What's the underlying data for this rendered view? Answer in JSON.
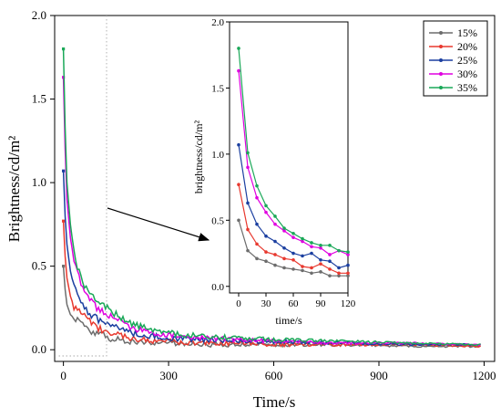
{
  "chart_data": {
    "type": "line",
    "xlabel": "Time/s",
    "ylabel": "Brightness/cd/m²",
    "xlim": [
      -25,
      1230
    ],
    "ylim": [
      -0.07,
      2.0
    ],
    "xticks": [
      0,
      300,
      600,
      900,
      1200
    ],
    "yticks": [
      0.0,
      0.5,
      1.0,
      1.5,
      2.0
    ],
    "xtick_labels": [
      "0",
      "300",
      "600",
      "900",
      "1200"
    ],
    "ytick_labels": [
      "0.0",
      "0.5",
      "1.0",
      "1.5",
      "2.0"
    ],
    "legend_placement": "top-right",
    "series": [
      {
        "name": "15%",
        "color": "#6d6d6d",
        "values": [
          [
            0,
            0.5
          ],
          [
            5,
            0.36
          ],
          [
            10,
            0.27
          ],
          [
            20,
            0.21
          ],
          [
            30,
            0.19
          ],
          [
            40,
            0.18
          ],
          [
            50,
            0.15
          ],
          [
            60,
            0.14
          ],
          [
            80,
            0.11
          ],
          [
            100,
            0.09
          ],
          [
            120,
            0.08
          ],
          [
            150,
            0.06
          ],
          [
            200,
            0.05
          ],
          [
            250,
            0.04
          ],
          [
            300,
            0.04
          ],
          [
            400,
            0.03
          ],
          [
            500,
            0.03
          ],
          [
            600,
            0.03
          ],
          [
            800,
            0.03
          ],
          [
            1000,
            0.02
          ],
          [
            1190,
            0.02
          ]
        ]
      },
      {
        "name": "20%",
        "color": "#e8392f",
        "values": [
          [
            0,
            0.77
          ],
          [
            5,
            0.56
          ],
          [
            10,
            0.43
          ],
          [
            20,
            0.32
          ],
          [
            30,
            0.26
          ],
          [
            40,
            0.24
          ],
          [
            50,
            0.21
          ],
          [
            60,
            0.2
          ],
          [
            80,
            0.16
          ],
          [
            100,
            0.13
          ],
          [
            120,
            0.11
          ],
          [
            150,
            0.09
          ],
          [
            200,
            0.07
          ],
          [
            250,
            0.05
          ],
          [
            300,
            0.05
          ],
          [
            400,
            0.04
          ],
          [
            500,
            0.04
          ],
          [
            600,
            0.03
          ],
          [
            800,
            0.03
          ],
          [
            1000,
            0.03
          ],
          [
            1190,
            0.02
          ]
        ]
      },
      {
        "name": "25%",
        "color": "#1b3fa0",
        "values": [
          [
            0,
            1.07
          ],
          [
            5,
            0.8
          ],
          [
            10,
            0.63
          ],
          [
            20,
            0.47
          ],
          [
            30,
            0.38
          ],
          [
            40,
            0.34
          ],
          [
            50,
            0.29
          ],
          [
            60,
            0.25
          ],
          [
            80,
            0.21
          ],
          [
            100,
            0.18
          ],
          [
            120,
            0.16
          ],
          [
            150,
            0.13
          ],
          [
            200,
            0.1
          ],
          [
            250,
            0.08
          ],
          [
            300,
            0.07
          ],
          [
            400,
            0.06
          ],
          [
            500,
            0.05
          ],
          [
            600,
            0.05
          ],
          [
            800,
            0.04
          ],
          [
            1000,
            0.03
          ],
          [
            1190,
            0.03
          ]
        ]
      },
      {
        "name": "30%",
        "color": "#e000e0",
        "values": [
          [
            0,
            1.63
          ],
          [
            5,
            1.2
          ],
          [
            10,
            0.9
          ],
          [
            20,
            0.67
          ],
          [
            30,
            0.54
          ],
          [
            40,
            0.46
          ],
          [
            50,
            0.4
          ],
          [
            60,
            0.35
          ],
          [
            80,
            0.29
          ],
          [
            100,
            0.24
          ],
          [
            120,
            0.22
          ],
          [
            150,
            0.18
          ],
          [
            200,
            0.13
          ],
          [
            250,
            0.1
          ],
          [
            300,
            0.09
          ],
          [
            400,
            0.07
          ],
          [
            500,
            0.06
          ],
          [
            600,
            0.05
          ],
          [
            800,
            0.04
          ],
          [
            1000,
            0.04
          ],
          [
            1190,
            0.03
          ]
        ]
      },
      {
        "name": "35%",
        "color": "#1aa858",
        "values": [
          [
            0,
            1.8
          ],
          [
            5,
            1.33
          ],
          [
            10,
            1.0
          ],
          [
            20,
            0.75
          ],
          [
            30,
            0.59
          ],
          [
            40,
            0.5
          ],
          [
            50,
            0.43
          ],
          [
            60,
            0.38
          ],
          [
            80,
            0.32
          ],
          [
            100,
            0.28
          ],
          [
            120,
            0.26
          ],
          [
            150,
            0.21
          ],
          [
            200,
            0.15
          ],
          [
            250,
            0.12
          ],
          [
            300,
            0.1
          ],
          [
            400,
            0.08
          ],
          [
            500,
            0.07
          ],
          [
            600,
            0.06
          ],
          [
            800,
            0.05
          ],
          [
            1000,
            0.04
          ],
          [
            1190,
            0.03
          ]
        ]
      }
    ],
    "inset": {
      "xlabel": "time/s",
      "ylabel": "brightness/cd/m²",
      "xlim": [
        -10,
        120
      ],
      "ylim": [
        -0.05,
        2.0
      ],
      "xticks": [
        0,
        30,
        60,
        90,
        120
      ],
      "yticks": [
        0.0,
        0.5,
        1.0,
        1.5,
        2.0
      ],
      "xtick_labels": [
        "0",
        "30",
        "60",
        "90",
        "120"
      ],
      "ytick_labels": [
        "0.0",
        "0.5",
        "1.0",
        "1.5",
        "2.0"
      ],
      "x": [
        0,
        10,
        20,
        30,
        40,
        50,
        60,
        70,
        80,
        90,
        100,
        110,
        120
      ],
      "series": [
        {
          "name": "15%",
          "values": [
            0.5,
            0.27,
            0.21,
            0.19,
            0.16,
            0.14,
            0.13,
            0.12,
            0.1,
            0.11,
            0.08,
            0.08,
            0.08
          ]
        },
        {
          "name": "20%",
          "values": [
            0.77,
            0.43,
            0.32,
            0.26,
            0.24,
            0.21,
            0.2,
            0.15,
            0.14,
            0.17,
            0.13,
            0.1,
            0.1
          ]
        },
        {
          "name": "25%",
          "values": [
            1.07,
            0.63,
            0.47,
            0.38,
            0.34,
            0.29,
            0.25,
            0.23,
            0.25,
            0.2,
            0.19,
            0.14,
            0.16
          ]
        },
        {
          "name": "30%",
          "values": [
            1.63,
            0.9,
            0.67,
            0.56,
            0.47,
            0.42,
            0.37,
            0.34,
            0.3,
            0.29,
            0.24,
            0.27,
            0.24
          ]
        },
        {
          "name": "35%",
          "values": [
            1.8,
            1.01,
            0.76,
            0.61,
            0.53,
            0.44,
            0.4,
            0.36,
            0.33,
            0.31,
            0.31,
            0.27,
            0.26
          ]
        }
      ]
    }
  }
}
